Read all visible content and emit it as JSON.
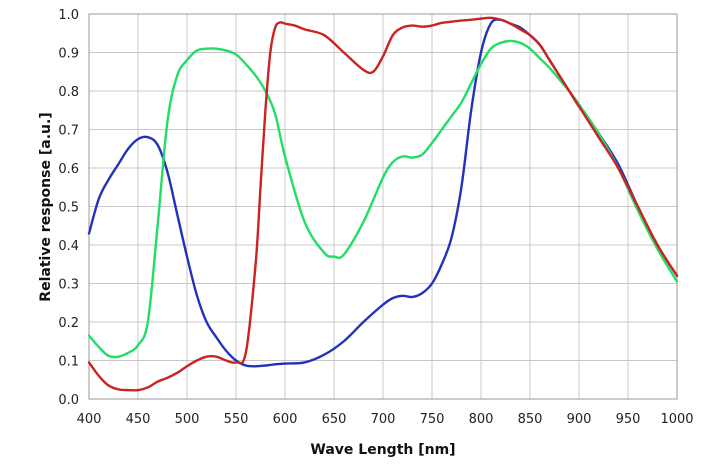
{
  "chart_data": {
    "type": "line",
    "title": "",
    "xlabel": "Wave Length [nm]",
    "ylabel": "Relative response  [a.u.]",
    "xlim": [
      400,
      1000
    ],
    "ylim": [
      0,
      1.0
    ],
    "x_ticks": [
      "400",
      "450",
      "500",
      "550",
      "600",
      "650",
      "700",
      "750",
      "800",
      "850",
      "900",
      "950",
      "1000"
    ],
    "y_ticks": [
      "0.0",
      "0.1",
      "0.2",
      "0.3",
      "0.4",
      "0.5",
      "0.6",
      "0.7",
      "0.8",
      "0.9",
      "1.0"
    ],
    "grid": true,
    "legend": "none",
    "series": [
      {
        "color": "#2233bb",
        "x": [
          400,
          410,
          420,
          430,
          440,
          450,
          460,
          470,
          480,
          490,
          500,
          510,
          520,
          530,
          540,
          550,
          560,
          570,
          580,
          590,
          600,
          620,
          640,
          660,
          680,
          700,
          710,
          720,
          730,
          740,
          750,
          760,
          770,
          780,
          790,
          800,
          810,
          820,
          830,
          840,
          850,
          860,
          870,
          880,
          890,
          900,
          920,
          940,
          960,
          980,
          1000
        ],
        "y": [
          0.43,
          0.52,
          0.57,
          0.61,
          0.65,
          0.675,
          0.68,
          0.66,
          0.59,
          0.48,
          0.37,
          0.27,
          0.2,
          0.16,
          0.125,
          0.1,
          0.087,
          0.085,
          0.087,
          0.09,
          0.092,
          0.095,
          0.115,
          0.15,
          0.2,
          0.245,
          0.262,
          0.268,
          0.265,
          0.275,
          0.3,
          0.35,
          0.42,
          0.55,
          0.75,
          0.9,
          0.975,
          0.985,
          0.975,
          0.965,
          0.945,
          0.92,
          0.88,
          0.84,
          0.8,
          0.76,
          0.69,
          0.61,
          0.5,
          0.4,
          0.32
        ]
      },
      {
        "color": "#22dd66",
        "x": [
          400,
          410,
          420,
          430,
          440,
          450,
          460,
          470,
          480,
          490,
          500,
          510,
          520,
          530,
          540,
          550,
          560,
          570,
          580,
          590,
          600,
          620,
          640,
          650,
          660,
          680,
          700,
          710,
          720,
          730,
          740,
          750,
          760,
          770,
          780,
          790,
          800,
          810,
          820,
          830,
          840,
          850,
          860,
          870,
          880,
          890,
          900,
          920,
          940,
          960,
          980,
          1000
        ],
        "y": [
          0.165,
          0.135,
          0.112,
          0.11,
          0.12,
          0.14,
          0.2,
          0.45,
          0.72,
          0.84,
          0.88,
          0.905,
          0.91,
          0.91,
          0.905,
          0.895,
          0.87,
          0.84,
          0.8,
          0.74,
          0.63,
          0.46,
          0.38,
          0.37,
          0.375,
          0.46,
          0.575,
          0.615,
          0.63,
          0.627,
          0.635,
          0.665,
          0.7,
          0.735,
          0.77,
          0.82,
          0.87,
          0.91,
          0.925,
          0.93,
          0.925,
          0.91,
          0.885,
          0.86,
          0.83,
          0.8,
          0.765,
          0.69,
          0.6,
          0.49,
          0.39,
          0.305
        ]
      },
      {
        "color": "#cc2222",
        "x": [
          400,
          410,
          420,
          430,
          440,
          450,
          460,
          470,
          480,
          490,
          500,
          510,
          520,
          530,
          540,
          550,
          560,
          570,
          575,
          580,
          585,
          590,
          595,
          600,
          610,
          620,
          640,
          660,
          680,
          690,
          700,
          710,
          720,
          730,
          740,
          750,
          760,
          770,
          780,
          790,
          800,
          810,
          820,
          830,
          840,
          850,
          860,
          870,
          880,
          890,
          900,
          920,
          940,
          960,
          980,
          1000
        ],
        "y": [
          0.095,
          0.06,
          0.035,
          0.025,
          0.023,
          0.023,
          0.03,
          0.045,
          0.055,
          0.068,
          0.085,
          0.1,
          0.11,
          0.11,
          0.1,
          0.095,
          0.12,
          0.35,
          0.55,
          0.75,
          0.9,
          0.965,
          0.978,
          0.975,
          0.97,
          0.96,
          0.945,
          0.9,
          0.855,
          0.85,
          0.89,
          0.945,
          0.965,
          0.97,
          0.967,
          0.97,
          0.977,
          0.98,
          0.983,
          0.985,
          0.988,
          0.99,
          0.985,
          0.975,
          0.96,
          0.945,
          0.92,
          0.88,
          0.84,
          0.8,
          0.76,
          0.68,
          0.6,
          0.5,
          0.4,
          0.32
        ]
      }
    ]
  }
}
